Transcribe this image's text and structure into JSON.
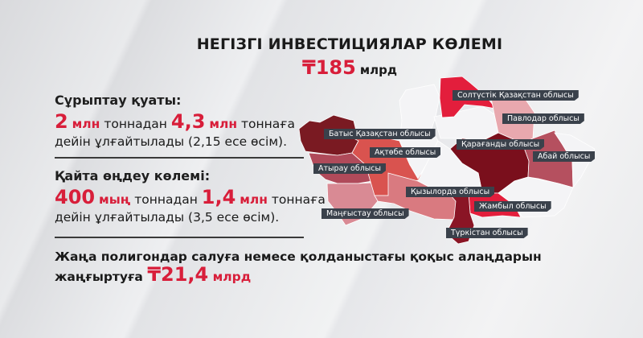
{
  "header": {
    "title": "НЕГІЗГІ ИНВЕСТИЦИЯЛАР КӨЛЕМІ",
    "total_value": "₸185",
    "total_unit": "млрд"
  },
  "sorting": {
    "heading": "Сұрыптау қуаты:",
    "from_value": "2",
    "from_unit": "млн",
    "from_text": "тоннадан",
    "to_value": "4,3",
    "to_unit": "млн",
    "to_text": "тоннаға",
    "rest": "дейін ұлғайтылады (2,15 есе өсім)."
  },
  "processing": {
    "heading": "Қайта өңдеу көлемі:",
    "from_value": "400",
    "from_unit": "мың",
    "from_text": "тоннадан",
    "to_value": "1,4",
    "to_unit": "млн",
    "to_text": "тоннаға",
    "rest": "дейін ұлғайтылады (3,5 есе өсім)."
  },
  "landfills": {
    "line1": "Жаңа полигондар салуға немесе қолданыстағы қоқыс алаңдарын",
    "line2": "жаңғыртуға",
    "value": "₸21,4",
    "unit": "млрд"
  },
  "map": {
    "colors": {
      "accent": "#d81e3a",
      "dark": "#7a0f1c",
      "label_bg": "#3a414b"
    },
    "labels": [
      "Солтүстік Қазақстан облысы",
      "Павлодар облысы",
      "Батыс Қазақстан облысы",
      "Қарағанды облысы",
      "Ақтөбе облысы",
      "Абай облысы",
      "Атырау облысы",
      "Қызылорда облысы",
      "Жамбыл облысы",
      "Маңғыстау облысы",
      "Түркістан облысы"
    ]
  }
}
